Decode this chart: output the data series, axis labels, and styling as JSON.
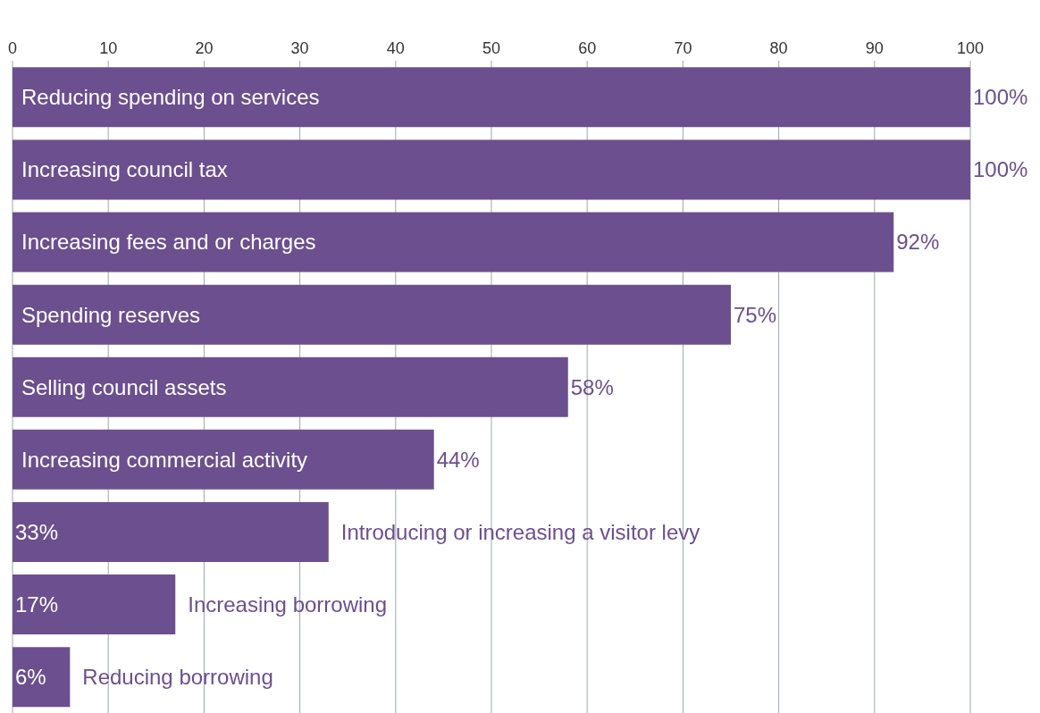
{
  "chart_data": {
    "type": "bar",
    "orientation": "horizontal",
    "categories": [
      "Reducing spending on services",
      "Increasing council tax",
      "Increasing fees and or charges",
      "Spending reserves",
      "Selling council assets",
      "Increasing commercial activity",
      "Introducing or increasing a visitor levy",
      "Increasing borrowing",
      "Reducing borrowing"
    ],
    "values": [
      100,
      100,
      92,
      75,
      58,
      44,
      33,
      17,
      6
    ],
    "value_labels": [
      "100%",
      "100%",
      "92%",
      "75%",
      "58%",
      "44%",
      "33%",
      "17%",
      "6%"
    ],
    "color": "#6c4f8e",
    "xlim": [
      0,
      100
    ],
    "xticks": [
      0,
      10,
      20,
      30,
      40,
      50,
      60,
      70,
      80,
      90,
      100
    ],
    "grid": "x",
    "legend": false
  }
}
